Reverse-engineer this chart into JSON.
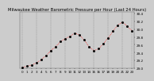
{
  "title": "Milwaukee Weather Barometric Pressure per Hour (Last 24 Hours)",
  "ylim": [
    29.0,
    30.45
  ],
  "yticks": [
    29.0,
    29.2,
    29.4,
    29.6,
    29.8,
    30.0,
    30.2,
    30.4
  ],
  "ytick_labels": [
    "29.0",
    "29.2",
    "29.4",
    "29.6",
    "29.8",
    "30.0",
    "30.2",
    "30.4"
  ],
  "hours": [
    0,
    1,
    2,
    3,
    4,
    5,
    6,
    7,
    8,
    9,
    10,
    11,
    12,
    13,
    14,
    15,
    16,
    17,
    18,
    19,
    20,
    21,
    22,
    23
  ],
  "pressure": [
    29.02,
    29.05,
    29.08,
    29.14,
    29.22,
    29.32,
    29.45,
    29.55,
    29.68,
    29.75,
    29.82,
    29.9,
    29.85,
    29.72,
    29.55,
    29.45,
    29.5,
    29.62,
    29.78,
    29.95,
    30.1,
    30.18,
    30.08,
    29.95
  ],
  "bg_color": "#cccccc",
  "plot_bg_color": "#cccccc",
  "line_color": "#ff0000",
  "dot_color": "#000000",
  "grid_color": "#888888",
  "title_fontsize": 3.8,
  "tick_fontsize": 3.0,
  "line_width": 0.5,
  "marker_size": 1.0,
  "vgrid_positions": [
    0,
    3,
    6,
    9,
    12,
    15,
    18,
    21,
    23
  ],
  "xlim": [
    -0.5,
    23.5
  ]
}
